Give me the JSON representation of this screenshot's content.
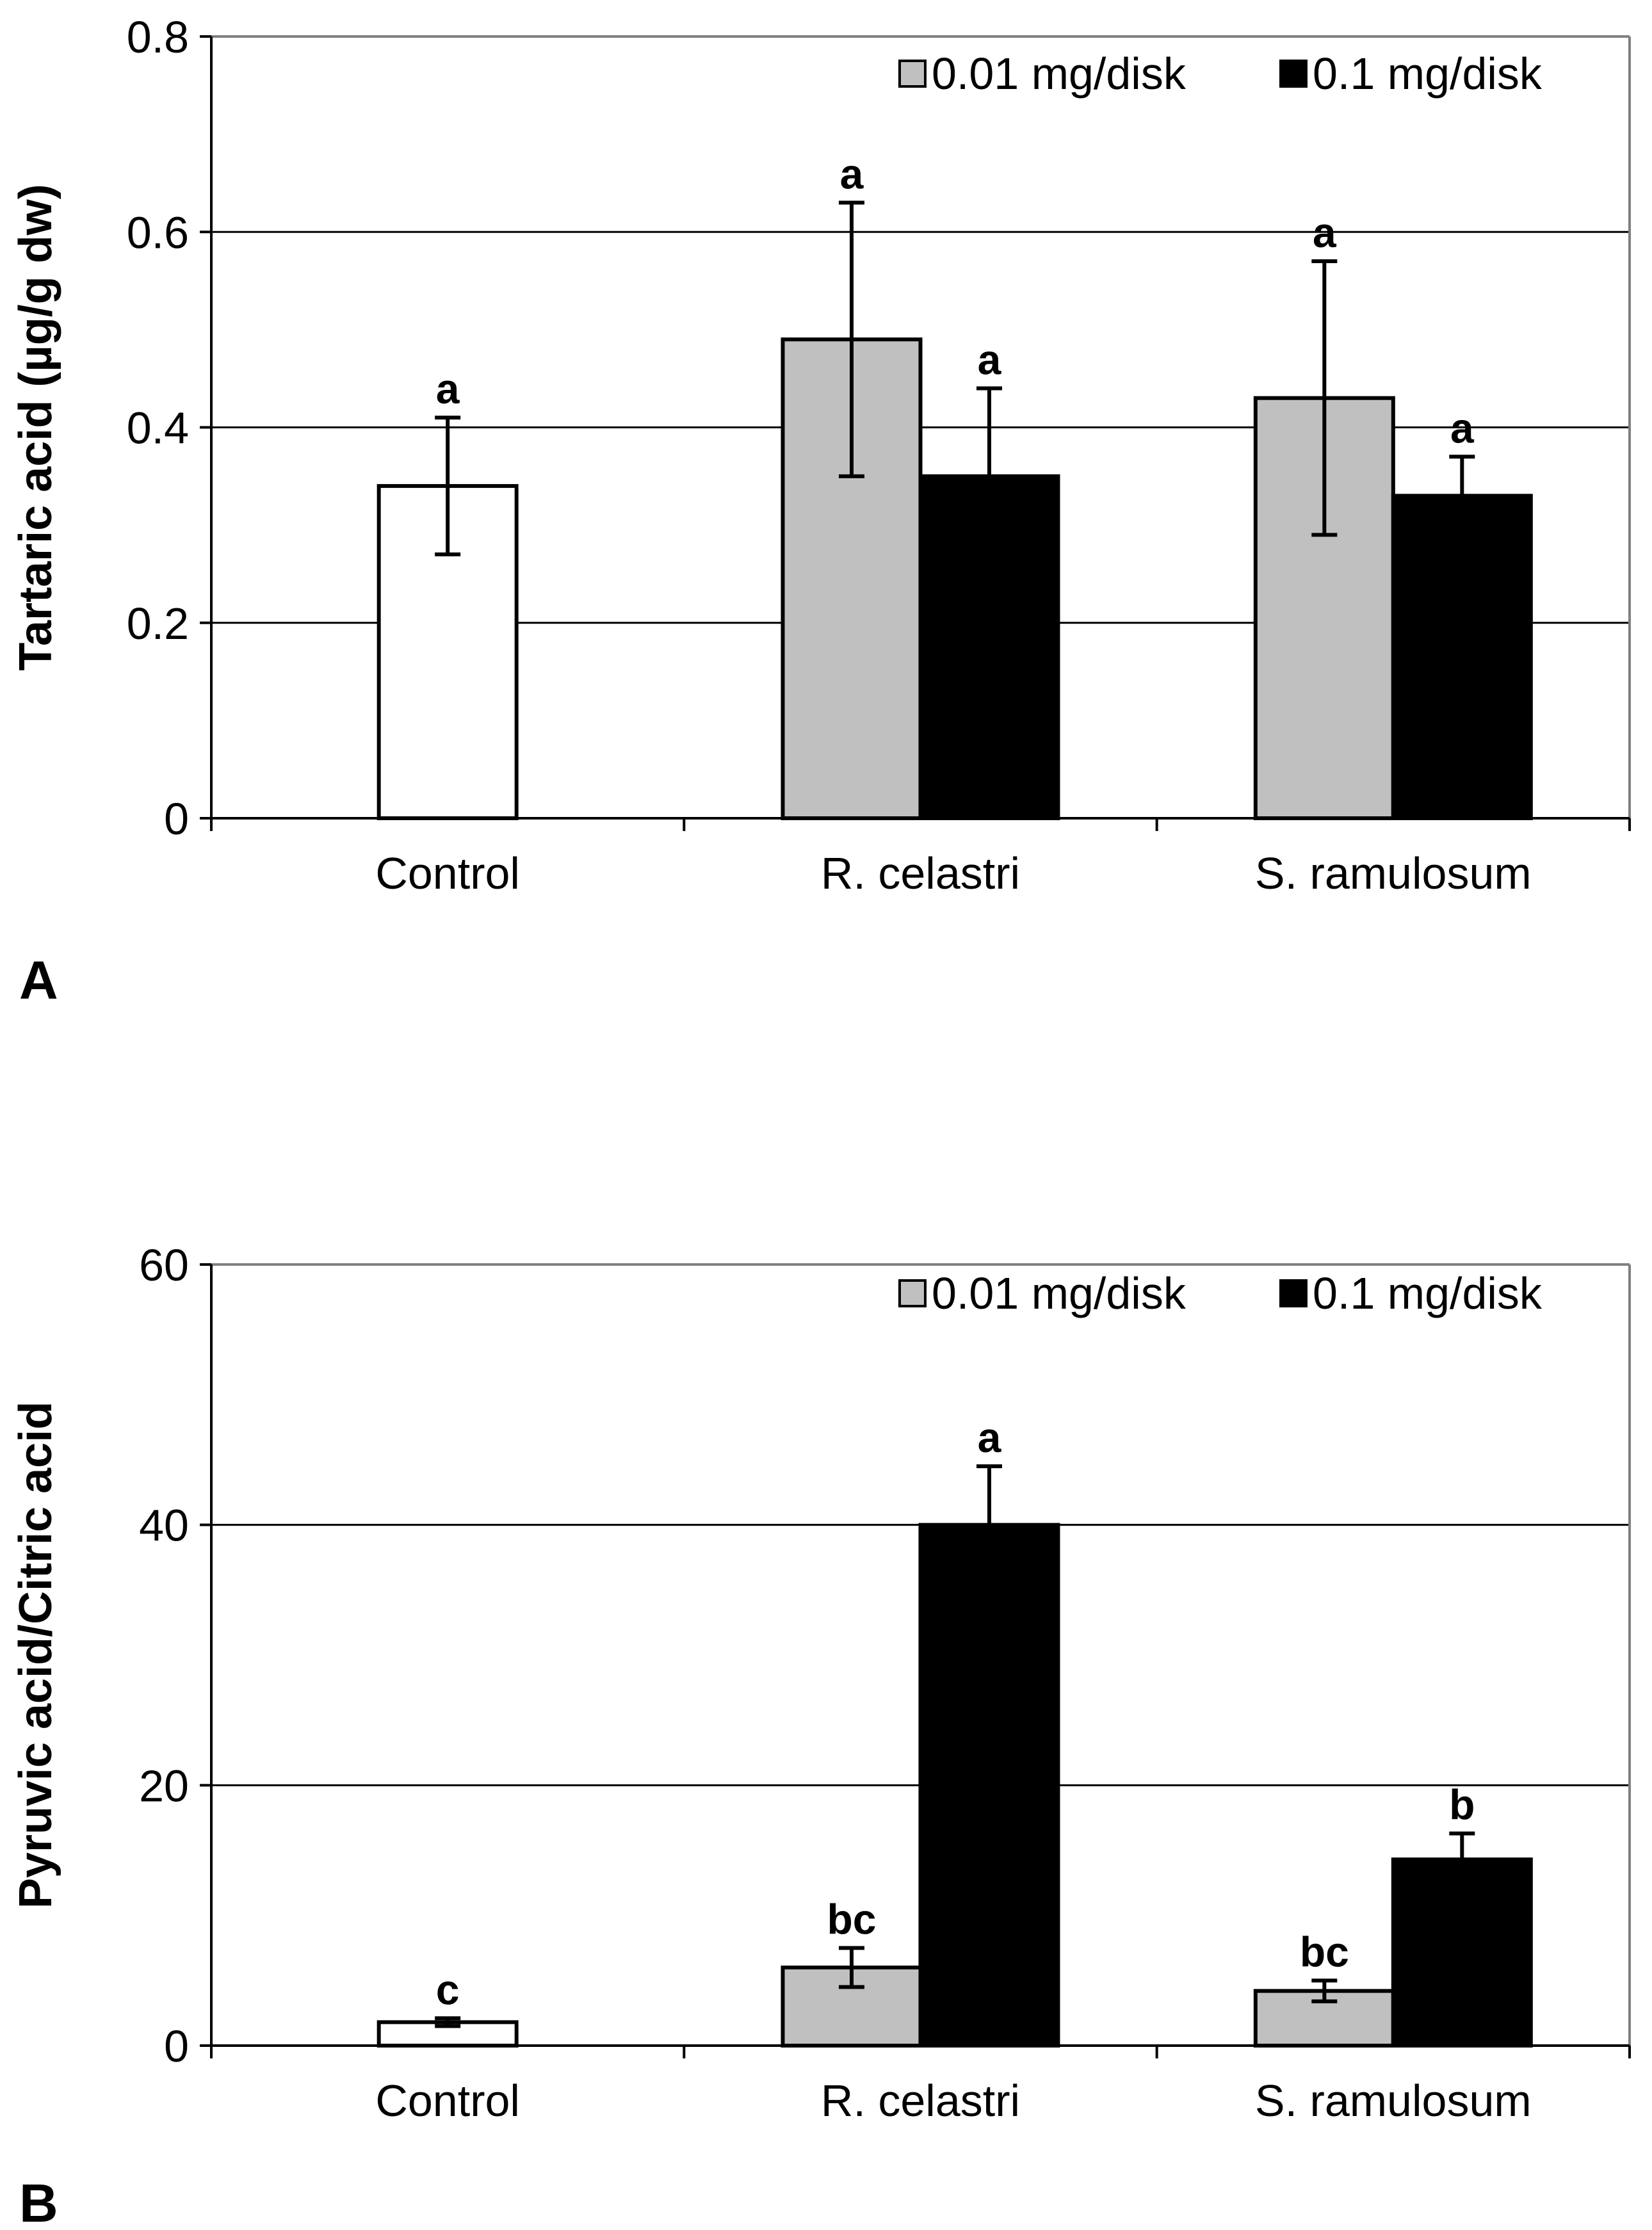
{
  "colors": {
    "control": "#ffffff",
    "low": "#c0c0c0",
    "high": "#000000",
    "grid": "#000000",
    "frame": "#808080"
  },
  "legend": {
    "low_label": "0.01 mg/disk",
    "high_label": "0.1 mg/disk"
  },
  "chart_data": [
    {
      "panel": "A",
      "type": "bar",
      "title": "",
      "xlabel": "",
      "ylabel": "Tartaric acid (µg/g dw)",
      "ylim": [
        0,
        0.8
      ],
      "yticks": [
        0,
        0.2,
        0.4,
        0.6,
        0.8
      ],
      "ytick_labels": [
        "0",
        "0.2",
        "0.4",
        "0.6",
        "0.8"
      ],
      "grid": true,
      "legend_position": "top-right",
      "categories": [
        "Control",
        "R. celastri",
        "S. ramulosum"
      ],
      "bars": [
        {
          "category": "Control",
          "series": "control",
          "value": 0.34,
          "error": 0.07,
          "letter": "a"
        },
        {
          "category": "R. celastri",
          "series": "0.01 mg/disk",
          "value": 0.49,
          "error": 0.14,
          "letter": "a"
        },
        {
          "category": "R. celastri",
          "series": "0.1 mg/disk",
          "value": 0.35,
          "error": 0.09,
          "letter": "a"
        },
        {
          "category": "S. ramulosum",
          "series": "0.01 mg/disk",
          "value": 0.43,
          "error": 0.14,
          "letter": "a"
        },
        {
          "category": "S. ramulosum",
          "series": "0.1 mg/disk",
          "value": 0.33,
          "error": 0.04,
          "letter": "a"
        }
      ]
    },
    {
      "panel": "B",
      "type": "bar",
      "title": "",
      "xlabel": "",
      "ylabel": "Pyruvic acid/Citric acid",
      "ylim": [
        0,
        60
      ],
      "yticks": [
        0,
        20,
        40,
        60
      ],
      "ytick_labels": [
        "0",
        "20",
        "40",
        "60"
      ],
      "grid": true,
      "legend_position": "top-right",
      "categories": [
        "Control",
        "R. celastri",
        "S. ramulosum"
      ],
      "bars": [
        {
          "category": "Control",
          "series": "control",
          "value": 1.8,
          "error": 0.3,
          "letter": "c"
        },
        {
          "category": "R. celastri",
          "series": "0.01 mg/disk",
          "value": 6.0,
          "error": 1.5,
          "letter": "bc"
        },
        {
          "category": "R. celastri",
          "series": "0.1 mg/disk",
          "value": 40.0,
          "error": 4.5,
          "letter": "a"
        },
        {
          "category": "S. ramulosum",
          "series": "0.01 mg/disk",
          "value": 4.2,
          "error": 0.8,
          "letter": "bc"
        },
        {
          "category": "S. ramulosum",
          "series": "0.1 mg/disk",
          "value": 14.3,
          "error": 2.0,
          "letter": "b"
        }
      ]
    }
  ]
}
